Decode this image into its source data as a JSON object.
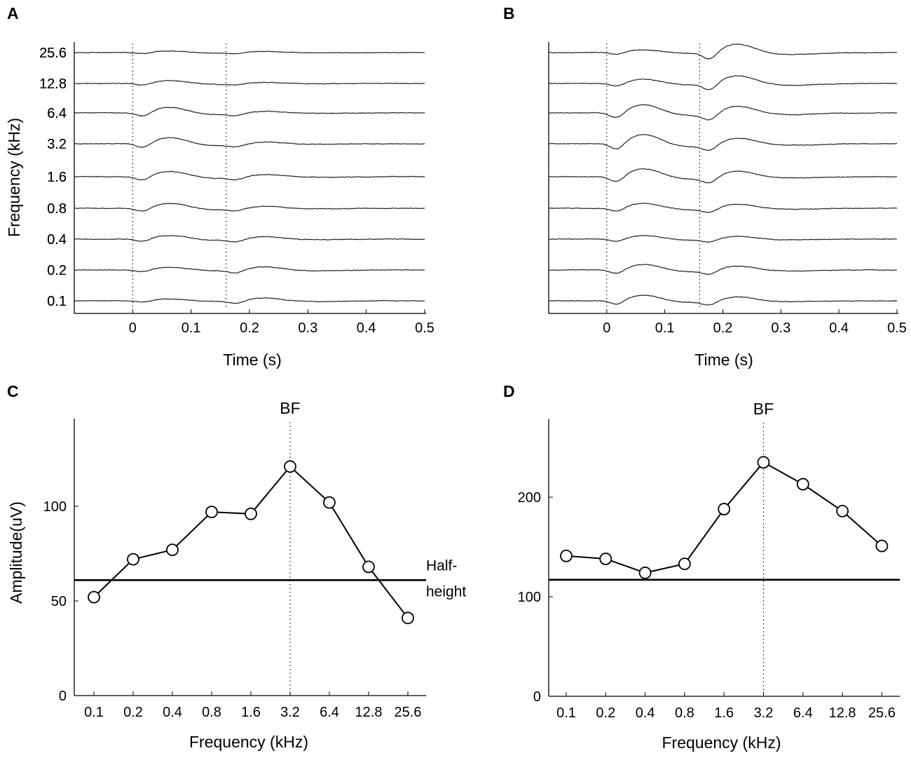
{
  "chart_data": [
    {
      "panel": "A",
      "type": "line",
      "title": "",
      "xlabel": "Time (s)",
      "ylabel": "Frequency (kHz)",
      "xlim": [
        -0.1,
        0.5
      ],
      "xticks": [
        "0",
        "0.1",
        "0.2",
        "0.3",
        "0.4",
        "0.5"
      ],
      "xtick_values": [
        0,
        0.1,
        0.2,
        0.3,
        0.4,
        0.5
      ],
      "channels": [
        "25.6",
        "12.8",
        "6.4",
        "3.2",
        "1.6",
        "0.8",
        "0.4",
        "0.2",
        "0.1"
      ],
      "markers_s": [
        0,
        0.16
      ],
      "response_gain": [
        0.25,
        0.45,
        0.9,
        1.0,
        0.85,
        0.8,
        0.6,
        0.45,
        0.3
      ],
      "second_gain": [
        0.2,
        0.2,
        0.3,
        0.35,
        0.4,
        0.35,
        0.45,
        0.55,
        0.5
      ]
    },
    {
      "panel": "B",
      "type": "line",
      "title": "",
      "xlabel": "Time (s)",
      "ylabel": "",
      "xlim": [
        -0.1,
        0.5
      ],
      "xticks": [
        "0",
        "0.1",
        "0.2",
        "0.3",
        "0.4",
        "0.5"
      ],
      "xtick_values": [
        0,
        0.1,
        0.2,
        0.3,
        0.4,
        0.5
      ],
      "channels": [
        "25.6",
        "12.8",
        "6.4",
        "3.2",
        "1.6",
        "0.8",
        "0.4",
        "0.2",
        "0.1"
      ],
      "markers_s": [
        0,
        0.16
      ],
      "response_gain": [
        0.45,
        0.7,
        1.3,
        1.5,
        1.3,
        0.8,
        0.55,
        0.9,
        0.9
      ],
      "second_gain": [
        1.4,
        1.3,
        1.2,
        1.0,
        1.0,
        0.7,
        0.5,
        0.7,
        0.7
      ]
    },
    {
      "panel": "C",
      "type": "line",
      "title": "",
      "xlabel": "Frequency (kHz)",
      "ylabel": "Amplitude(uV)",
      "categories": [
        "0.1",
        "0.2",
        "0.4",
        "0.8",
        "1.6",
        "3.2",
        "6.4",
        "12.8",
        "25.6"
      ],
      "values": [
        52,
        72,
        77,
        97,
        96,
        121,
        102,
        68,
        41
      ],
      "ylim": [
        0,
        145
      ],
      "yticks": [
        0,
        50,
        100
      ],
      "half_height": 61,
      "half_height_label": "Half-height",
      "bf_label": "BF",
      "bf_category": "3.2"
    },
    {
      "panel": "D",
      "type": "line",
      "title": "",
      "xlabel": "Frequency (kHz)",
      "ylabel": "",
      "categories": [
        "0.1",
        "0.2",
        "0.4",
        "0.8",
        "1.6",
        "3.2",
        "6.4",
        "12.8",
        "25.6"
      ],
      "values": [
        141,
        138,
        124,
        133,
        188,
        235,
        213,
        186,
        151
      ],
      "ylim": [
        0,
        280
      ],
      "yticks": [
        0,
        100,
        200
      ],
      "half_height": 117,
      "bf_label": "BF",
      "bf_category": "3.2"
    }
  ]
}
